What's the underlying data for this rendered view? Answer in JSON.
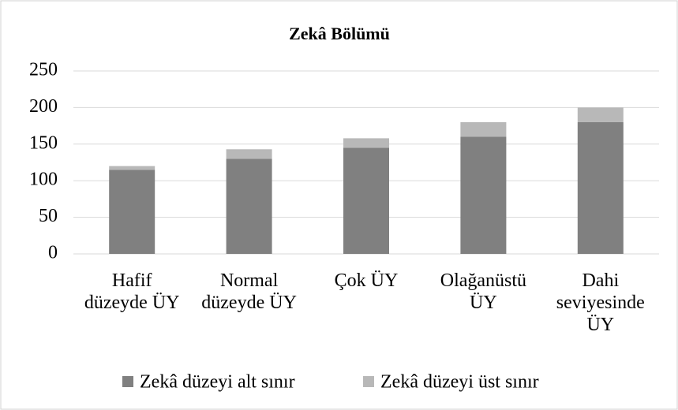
{
  "chart_data": {
    "type": "stacked_bar",
    "title": "Zekâ Bölümü",
    "categories": [
      "Hafif düzeyde ÜY",
      "Normal düzeyde ÜY",
      "Çok ÜY",
      "Olağanüstü ÜY",
      "Dahi seviyesinde ÜY"
    ],
    "series": [
      {
        "name": "Zekâ düzeyi alt sınır",
        "color": "#808080",
        "values": [
          115,
          130,
          145,
          160,
          180
        ]
      },
      {
        "name": "Zekâ düzeyi üst sınır",
        "color": "#b8b8b8",
        "values": [
          5,
          13,
          13,
          20,
          20
        ]
      }
    ],
    "ylim": [
      0,
      250
    ],
    "yticks": [
      0,
      50,
      100,
      150,
      200,
      250
    ],
    "grid": true,
    "legend": "bottom"
  }
}
